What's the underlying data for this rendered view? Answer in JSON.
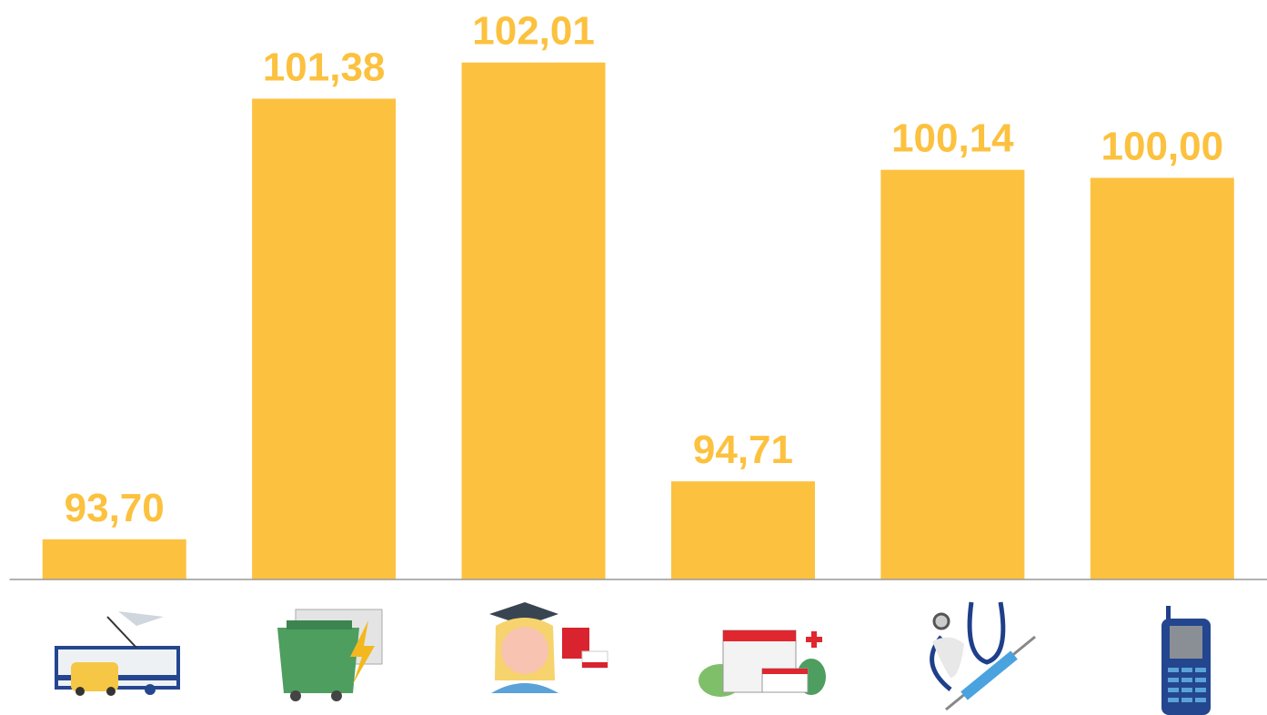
{
  "chart_data": {
    "type": "bar",
    "categories": [
      null,
      null,
      null,
      null,
      null,
      null
    ],
    "values": [
      93.7,
      101.38,
      102.01,
      94.71,
      100.14,
      100.0
    ],
    "value_labels": [
      "93,70",
      "101,38",
      "102,01",
      "94,71",
      "100,14",
      "100,00"
    ],
    "color": "#fdc140",
    "ylim": [
      93,
      103.1
    ]
  }
}
